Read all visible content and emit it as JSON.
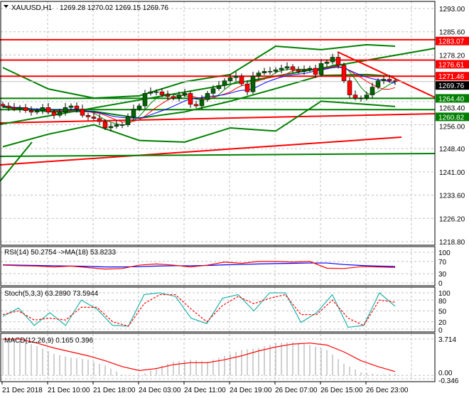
{
  "header": {
    "symbol": "XAUUSD,H1",
    "ohlc": "1269.28 1270.02 1269.15 1269.76"
  },
  "colors": {
    "bull": "#006400",
    "bear": "#ff0000",
    "level_red": "#ff0000",
    "level_green": "#008000",
    "current": "#000000"
  },
  "chart_data": [
    {
      "type": "candlestick",
      "name": "price",
      "ylim": [
        1218.8,
        1293.0
      ],
      "y_ticks": [
        "1293.00",
        "1285.60",
        "1278.20",
        "1263.40",
        "1256.00",
        "1248.40",
        "1241.00",
        "1233.60",
        "1226.20",
        "1218.80"
      ],
      "x_ticks": [
        "21 Dec 2018",
        "21 Dec 10:00",
        "21 Dec 18:00",
        "24 Dec 03:00",
        "24 Dec 11:00",
        "24 Dec 19:00",
        "26 Dec 07:00",
        "26 Dec 15:00",
        "26 Dec 23:00"
      ],
      "close": [
        1262,
        1261.5,
        1261,
        1261.5,
        1260.5,
        1260,
        1260.5,
        1261.5,
        1260,
        1259,
        1260,
        1261.5,
        1262,
        1261,
        1259,
        1258.5,
        1258,
        1257,
        1255,
        1255.5,
        1256,
        1256,
        1258.5,
        1261,
        1262,
        1266,
        1266.5,
        1266.5,
        1265.5,
        1265,
        1264.5,
        1265.5,
        1266,
        1262.5,
        1262,
        1264,
        1266,
        1267.5,
        1268.5,
        1270,
        1271,
        1271.5,
        1269,
        1266.5,
        1271.5,
        1272.5,
        1273,
        1273,
        1273.5,
        1274,
        1274.5,
        1273.5,
        1273,
        1273.5,
        1274,
        1272,
        1275.5,
        1276,
        1277.5,
        1275,
        1270,
        1265.5,
        1264.5,
        1264.5,
        1265.5,
        1268,
        1270,
        1270.5,
        1270,
        1269.76
      ],
      "upper_band": [
        1274.2,
        1267.4,
        1264.5,
        1265.2,
        1269.7,
        1272,
        1281,
        1279.9,
        1281.5,
        1281
      ],
      "lower_band": [
        1249,
        1253,
        1256,
        1251,
        1250.5,
        1255,
        1254,
        1263.5,
        1262.5,
        1261.8
      ],
      "levels": [
        {
          "price": 1283.07,
          "label": "1283.07",
          "color": "#ff0000"
        },
        {
          "price": 1276.61,
          "label": "1276.61",
          "color": "#ff0000"
        },
        {
          "price": 1271.46,
          "label": "1271.46",
          "color": "#ff0000"
        },
        {
          "price": 1264.4,
          "label": "1264.40",
          "color": "#008000"
        },
        {
          "price": 1260.82,
          "label": "1260.82",
          "color": "#008000"
        }
      ],
      "current": {
        "price": 1269.76,
        "label": "1269.76"
      }
    },
    {
      "type": "line",
      "name": "RSI",
      "title": "RSI(14) 50.2754  ->MA(18) 53.8233",
      "ylim": [
        0,
        100
      ],
      "y_ticks": [
        "100",
        "70",
        "30",
        "0"
      ],
      "rsi": [
        58,
        56,
        55,
        52,
        55,
        50,
        45,
        47,
        58,
        62,
        58,
        52,
        58,
        68,
        64,
        70,
        70,
        68,
        70,
        48,
        47,
        53,
        52,
        50.3
      ],
      "ma": [
        59,
        58,
        57,
        56,
        55,
        54,
        52,
        52,
        53,
        55,
        56,
        56,
        57,
        59,
        60,
        62,
        63,
        64,
        65,
        65,
        60,
        57,
        55,
        53.8
      ]
    },
    {
      "type": "line",
      "name": "Stoch",
      "title": "Stoch(5,3,3) 63.2890 73.5944",
      "ylim": [
        0,
        100
      ],
      "y_ticks": [
        "100",
        "80",
        "50",
        "20",
        "0"
      ],
      "main": [
        35,
        58,
        10,
        45,
        10,
        80,
        55,
        10,
        8,
        95,
        100,
        90,
        30,
        15,
        85,
        95,
        50,
        100,
        100,
        18,
        45,
        95,
        5,
        10,
        100,
        63
      ],
      "signal": [
        40,
        50,
        25,
        30,
        25,
        60,
        60,
        20,
        8,
        70,
        95,
        95,
        55,
        20,
        65,
        90,
        70,
        85,
        95,
        40,
        40,
        80,
        30,
        10,
        80,
        74
      ]
    },
    {
      "type": "bar",
      "name": "MACD",
      "title": "MACD(12,26,9) 0.165 0.396",
      "ylim": [
        -0.346,
        3.714
      ],
      "y_ticks": [
        "3.714",
        "0.00",
        "-0.346"
      ],
      "histogram": [
        3.7,
        3.6,
        3.0,
        2.2,
        1.8,
        1.6,
        1.0,
        0.1,
        -0.1,
        0.8,
        1.4,
        1.6,
        1.4,
        2.0,
        2.6,
        2.8,
        3.3,
        3.4,
        3.1,
        2.6,
        1.2,
        0.3,
        0.1,
        0.165
      ],
      "signal": [
        3.7,
        3.7,
        3.3,
        2.8,
        2.4,
        2.0,
        1.5,
        0.9,
        0.5,
        0.7,
        1.1,
        1.3,
        1.3,
        1.6,
        2.0,
        2.5,
        2.9,
        3.2,
        3.3,
        3.1,
        2.4,
        1.5,
        0.9,
        0.396
      ]
    }
  ]
}
